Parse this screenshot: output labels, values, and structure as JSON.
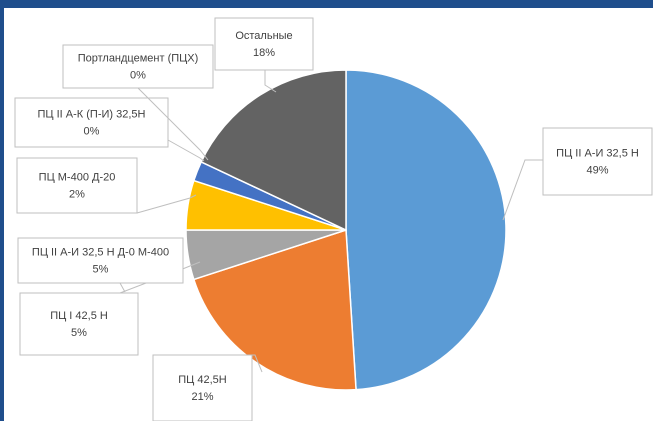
{
  "chart_data": {
    "type": "pie",
    "categories": [
      "ПЦ II А-И 32,5 Н",
      "ПЦ 42,5Н",
      "ПЦ I 42,5 Н",
      "ПЦ II А-И 32,5 Н Д-0 М-400",
      "ПЦ М-400 Д-20",
      "ПЦ II А-К (П-И) 32,5Н",
      "Портландцемент (ПЦХ)",
      "Остальные"
    ],
    "values": [
      49,
      21,
      5,
      5,
      2,
      0,
      0,
      18
    ],
    "value_labels": [
      "49%",
      "21%",
      "5%",
      "5%",
      "2%",
      "0%",
      "0%",
      "18%"
    ],
    "colors": [
      "#5b9bd5",
      "#ed7d31",
      "#a5a5a5",
      "#ffc000",
      "#4472c4",
      "#70ad47",
      "#264478",
      "#636363"
    ]
  }
}
